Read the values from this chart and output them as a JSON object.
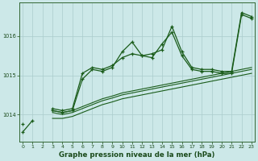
{
  "bg_color": "#cce8e8",
  "grid_color": "#aacccc",
  "line_color": "#1a5c1a",
  "xlabel": "Graphe pression niveau de la mer (hPa)",
  "x_ticks": [
    0,
    1,
    2,
    3,
    4,
    5,
    6,
    7,
    8,
    9,
    10,
    11,
    12,
    13,
    14,
    15,
    16,
    17,
    18,
    19,
    20,
    21,
    22,
    23
  ],
  "y_ticks": [
    1014,
    1015,
    1016
  ],
  "ylim": [
    1013.3,
    1016.85
  ],
  "xlim": [
    -0.3,
    23.3
  ],
  "s1": [
    1013.55,
    1013.85,
    null,
    1014.15,
    1014.1,
    1014.15,
    1015.05,
    1015.2,
    1015.15,
    1015.25,
    1015.45,
    1015.55,
    1015.5,
    1015.55,
    1015.65,
    1016.25,
    1015.6,
    1015.2,
    1015.15,
    1015.15,
    1015.1,
    1015.1,
    1016.6,
    1016.5
  ],
  "s2": [
    1013.75,
    null,
    null,
    1014.1,
    1014.05,
    1014.1,
    1014.9,
    1015.15,
    1015.1,
    1015.2,
    1015.6,
    1015.85,
    1015.5,
    1015.45,
    1015.8,
    1016.1,
    1015.5,
    1015.15,
    1015.1,
    1015.1,
    1015.05,
    1015.05,
    1016.55,
    1016.45
  ],
  "s3": [
    1013.6,
    null,
    null,
    1014.05,
    1014.0,
    1014.05,
    1014.15,
    1014.25,
    1014.35,
    1014.42,
    1014.5,
    1014.55,
    1014.6,
    1014.65,
    1014.7,
    1014.75,
    1014.8,
    1014.85,
    1014.9,
    1014.95,
    1015.0,
    1015.05,
    1015.1,
    1015.15
  ],
  "s4": [
    1013.5,
    null,
    null,
    1013.9,
    1013.9,
    1013.95,
    1014.05,
    1014.15,
    1014.25,
    1014.32,
    1014.4,
    1014.45,
    1014.5,
    1014.55,
    1014.6,
    1014.65,
    1014.7,
    1014.75,
    1014.8,
    1014.85,
    1014.9,
    1014.95,
    1015.0,
    1015.05
  ],
  "s5": [
    null,
    null,
    null,
    1014.1,
    1014.05,
    1014.1,
    1014.2,
    1014.3,
    1014.4,
    1014.47,
    1014.55,
    1014.6,
    1014.65,
    1014.7,
    1014.75,
    1014.8,
    1014.85,
    1014.9,
    1014.95,
    1015.0,
    1015.05,
    1015.1,
    1015.15,
    1015.2
  ]
}
